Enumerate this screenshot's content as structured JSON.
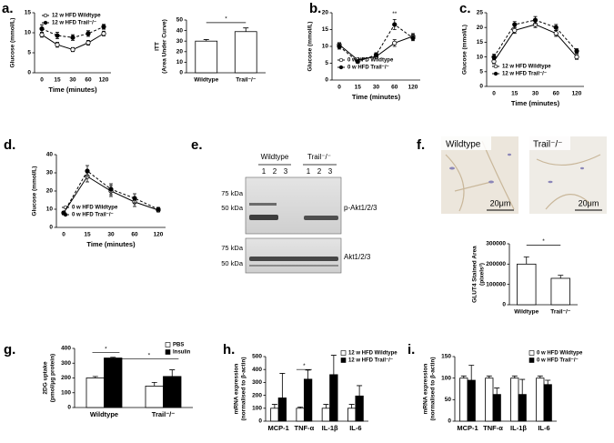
{
  "chart_data": [
    {
      "type": "line",
      "panel": "a.",
      "x_label": "Time (minutes)",
      "y_label": [
        "Glucose (mmol/L)"
      ],
      "categories": [
        "0",
        "15",
        "30",
        "60",
        "120"
      ],
      "ylim": [
        0,
        15
      ],
      "yticks": [
        0,
        5,
        10,
        15
      ],
      "legend": "top-left",
      "series": [
        {
          "name": "12 w HFD Wildtype",
          "color": "#000000",
          "line_style": "solid",
          "marker": "open",
          "values": [
            9.5,
            7,
            5.8,
            7.5,
            9.8
          ],
          "errors": [
            0.6,
            0.6,
            0.5,
            0.6,
            0.6
          ]
        },
        {
          "name": "12 w HFD Trail⁻/⁻",
          "color": "#000000",
          "line_style": "dashed",
          "marker": "filled",
          "values": [
            11,
            9.3,
            8.8,
            9.8,
            11.5
          ],
          "errors": [
            1,
            0.8,
            0.7,
            0.7,
            0.6
          ]
        }
      ]
    },
    {
      "type": "bar",
      "y_label": [
        "ITT",
        "(Area Under Curve)"
      ],
      "categories": [
        "Wildtype",
        "Trail⁻/⁻"
      ],
      "ylim": [
        0,
        50
      ],
      "yticks": [
        0,
        10,
        20,
        30,
        40,
        50
      ],
      "series": [
        {
          "color": "#ffffff",
          "values": [
            30,
            39
          ],
          "errors": [
            1.5,
            3.5
          ]
        }
      ],
      "annotations": [
        "*"
      ]
    },
    {
      "type": "line",
      "panel": "b.",
      "x_label": "Time (minutes)",
      "y_label": [
        "Glucose (mmol/L)"
      ],
      "categories": [
        "0",
        "15",
        "30",
        "60",
        "120"
      ],
      "ylim": [
        0,
        20
      ],
      "yticks": [
        0,
        5,
        10,
        15,
        20
      ],
      "legend": "bottom-left",
      "series": [
        {
          "name": "0 w HFD Wildtype",
          "color": "#000000",
          "line_style": "solid",
          "marker": "open",
          "values": [
            10.5,
            6,
            7,
            11,
            13
          ],
          "errors": [
            0.6,
            0.5,
            0.5,
            1,
            0.8
          ]
        },
        {
          "name": "0 w HFD Trail⁻/⁻",
          "color": "#000000",
          "line_style": "dashed",
          "marker": "filled",
          "values": [
            10,
            5.5,
            7.5,
            16.5,
            12.5
          ],
          "errors": [
            0.8,
            0.5,
            0.6,
            1.5,
            0.8
          ]
        }
      ],
      "annotations": [
        "**"
      ]
    },
    {
      "type": "line",
      "panel": "c.",
      "x_label": "Time (minutes)",
      "y_label": [
        "Glucose (mmol/L)"
      ],
      "categories": [
        "0",
        "15",
        "30",
        "60",
        "120"
      ],
      "ylim": [
        0,
        25
      ],
      "yticks": [
        0,
        5,
        10,
        15,
        20,
        25
      ],
      "legend": "bottom-left",
      "series": [
        {
          "name": "12 w HFD Wildtype",
          "color": "#000000",
          "line_style": "solid",
          "marker": "open",
          "values": [
            8.5,
            19,
            21,
            18,
            10
          ],
          "errors": [
            0.8,
            1,
            1,
            1,
            0.8
          ]
        },
        {
          "name": "12 w HFD Trail⁻/⁻",
          "color": "#000000",
          "line_style": "dashed",
          "marker": "filled",
          "values": [
            10,
            21,
            22.5,
            20,
            12
          ],
          "errors": [
            1,
            1,
            1.2,
            1,
            0.8
          ]
        }
      ]
    },
    {
      "type": "line",
      "panel": "d.",
      "x_label": "Time (minutes)",
      "y_label": [
        "Glucose (mmol/L)"
      ],
      "categories": [
        "0",
        "15",
        "30",
        "60",
        "120"
      ],
      "ylim": [
        0,
        40
      ],
      "yticks": [
        0,
        10,
        20,
        30,
        40
      ],
      "legend": "bottom-left",
      "series": [
        {
          "name": "0 w HFD Wildtype",
          "color": "#000000",
          "line_style": "solid",
          "marker": "open",
          "values": [
            8,
            28,
            20,
            14,
            9.5
          ],
          "errors": [
            0.8,
            3,
            3,
            2.5,
            1
          ]
        },
        {
          "name": "0 w HFD Trail⁻/⁻",
          "color": "#000000",
          "line_style": "dashed",
          "marker": "filled",
          "values": [
            8,
            31,
            21,
            16,
            10
          ],
          "errors": [
            0.8,
            3,
            3,
            2.5,
            1
          ]
        }
      ]
    },
    {
      "type": "bar",
      "y_label": [
        "GLUT4 Stained Area",
        "(pixels²)"
      ],
      "categories": [
        "Wildtype",
        "Trail⁻/⁻"
      ],
      "ylim": [
        0,
        300000
      ],
      "yticks": [
        0,
        100000,
        200000,
        300000
      ],
      "series": [
        {
          "color": "#ffffff",
          "values": [
            200000,
            130000
          ],
          "errors": [
            35000,
            15000
          ]
        }
      ],
      "annotations": [
        "*"
      ]
    },
    {
      "type": "bar",
      "panel": "g.",
      "y_label": [
        "2DG uptake",
        "(pmol/μg protein)"
      ],
      "categories": [
        "Wildtype",
        "Trail⁻/⁻"
      ],
      "ylim": [
        0,
        400
      ],
      "yticks": [
        0,
        100,
        200,
        300,
        400
      ],
      "legend": "top-right",
      "series": [
        {
          "name": "PBS",
          "color": "#ffffff",
          "values": [
            200,
            145
          ],
          "errors": [
            10,
            25
          ]
        },
        {
          "name": "Insulin",
          "color": "#000000",
          "values": [
            335,
            210
          ],
          "errors": [
            5,
            45
          ]
        }
      ],
      "annotations": [
        "*",
        "*"
      ]
    },
    {
      "type": "bar",
      "panel": "h.",
      "y_label": [
        "mRNA expression",
        "(normalised to β-actin)"
      ],
      "categories": [
        "MCP-1",
        "TNF-α",
        "IL-1β",
        "IL-6"
      ],
      "ylim": [
        0,
        500
      ],
      "yticks": [
        0,
        100,
        200,
        300,
        400,
        500
      ],
      "legend": "top-right",
      "series": [
        {
          "name": "12 w HFD Wildtype",
          "color": "#ffffff",
          "values": [
            100,
            100,
            100,
            100
          ],
          "errors": [
            30,
            10,
            30,
            30
          ]
        },
        {
          "name": "12 w HFD Trail⁻/⁻",
          "color": "#000000",
          "values": [
            180,
            325,
            360,
            195
          ],
          "errors": [
            190,
            70,
            150,
            80
          ]
        }
      ],
      "annotations": [
        "*"
      ]
    },
    {
      "type": "bar",
      "panel": "i.",
      "y_label": [
        "mRNA expression",
        "(normalised to β-actin)"
      ],
      "categories": [
        "MCP-1",
        "TNF-α",
        "IL-1β",
        "IL-6"
      ],
      "ylim": [
        0,
        150
      ],
      "yticks": [
        0,
        50,
        100,
        150
      ],
      "legend": "top-right",
      "series": [
        {
          "name": "0 w HFD Wildtype",
          "color": "#ffffff",
          "values": [
            100,
            100,
            100,
            100
          ],
          "errors": [
            5,
            5,
            5,
            5
          ]
        },
        {
          "name": "0 w HFD Trail⁻/⁻",
          "color": "#000000",
          "values": [
            95,
            62,
            62,
            85
          ],
          "errors": [
            35,
            15,
            35,
            10
          ]
        }
      ]
    }
  ],
  "blot": {
    "panel": "e.",
    "groups": [
      "Wildtype",
      "Trail⁻/⁻"
    ],
    "lanes": [
      "1",
      "2",
      "3",
      "1",
      "2",
      "3"
    ],
    "markers": [
      "75 kDa",
      "50 kDa",
      "75 kDa",
      "50 kDa"
    ],
    "targets": [
      "p-Akt1/2/3",
      "Akt1/2/3"
    ]
  },
  "micrographs": {
    "panel": "f.",
    "labels": [
      "Wildtype",
      "Trail⁻/⁻"
    ],
    "scale_bars": [
      "20μm",
      "20μm"
    ]
  }
}
